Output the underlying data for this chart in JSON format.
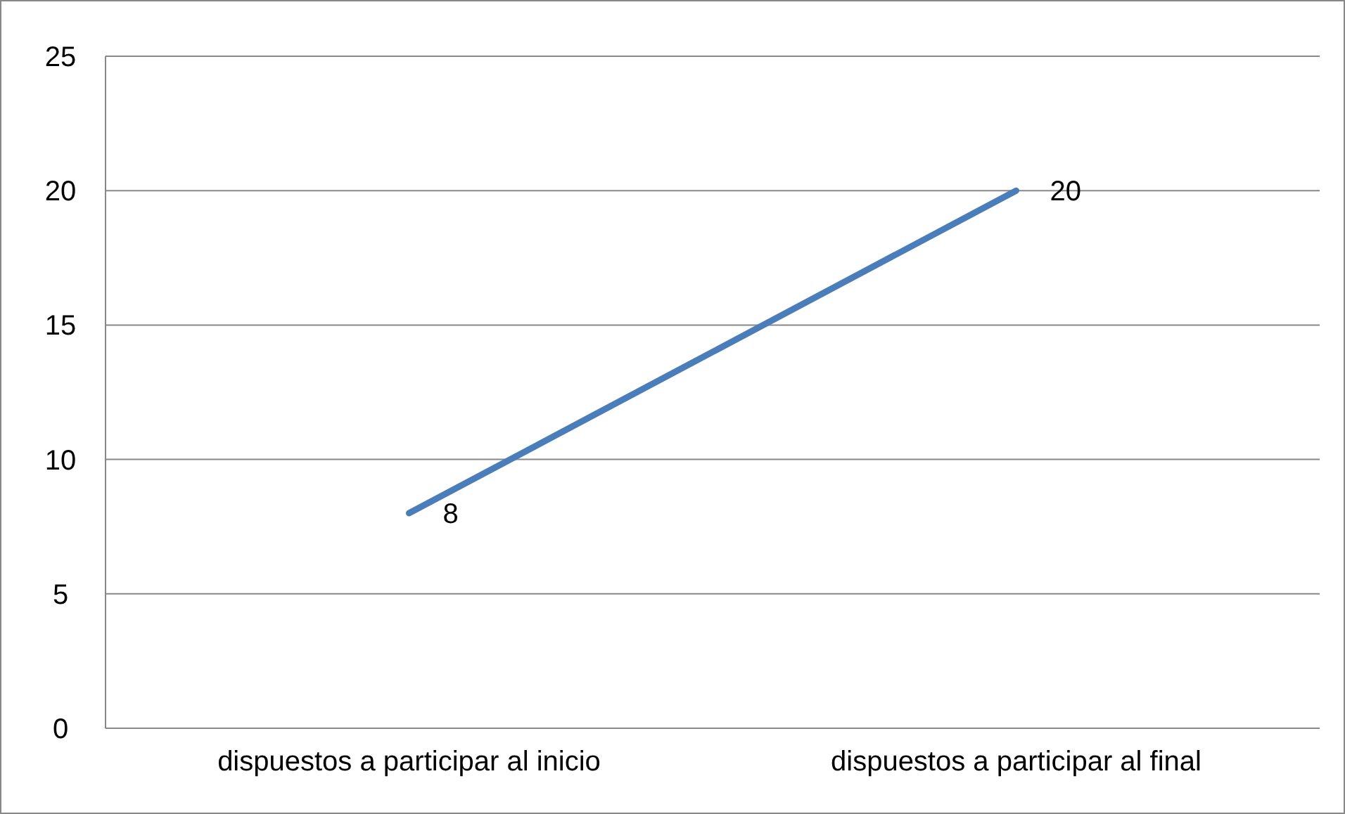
{
  "chart_data": {
    "type": "line",
    "categories": [
      "dispuestos a participar al inicio",
      "dispuestos a participar al final"
    ],
    "series": [
      {
        "color": "#4a7ebb",
        "values": [
          8,
          20
        ]
      }
    ],
    "ylim": [
      0,
      25
    ],
    "yticks": [
      0,
      5,
      10,
      15,
      20,
      25
    ],
    "grid": "y",
    "data_labels": true,
    "marker": "none"
  }
}
